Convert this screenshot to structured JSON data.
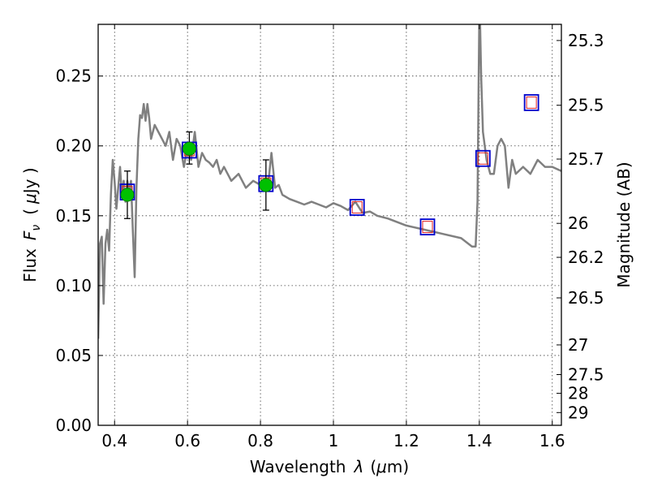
{
  "chart_data": {
    "type": "line",
    "xlabel_text": "Wavelength",
    "xlabel_symbol": "λ",
    "xlabel_unit_open": "(",
    "xlabel_unit_mu": "μ",
    "xlabel_unit_rest": "m)",
    "ylabel_text": "Flux",
    "ylabel_symbol": "F",
    "ylabel_subscript": "ν",
    "ylabel_unit_open": "(",
    "ylabel_unit_mu": "μ",
    "ylabel_unit_rest": "Jy )",
    "y2label": "Magnitude (AB)",
    "xlim": [
      0.355,
      1.625
    ],
    "ylim": [
      0.0,
      0.287
    ],
    "grid": true,
    "x_ticks": [
      {
        "value": 0.4,
        "label": "0.4"
      },
      {
        "value": 0.6,
        "label": "0.6"
      },
      {
        "value": 0.8,
        "label": "0.8"
      },
      {
        "value": 1.0,
        "label": "1"
      },
      {
        "value": 1.2,
        "label": "1.2"
      },
      {
        "value": 1.4,
        "label": "1.4"
      },
      {
        "value": 1.6,
        "label": "1.6"
      }
    ],
    "y_ticks": [
      {
        "value": 0.0,
        "label": "0.00"
      },
      {
        "value": 0.05,
        "label": "0.05"
      },
      {
        "value": 0.1,
        "label": "0.10"
      },
      {
        "value": 0.15,
        "label": "0.15"
      },
      {
        "value": 0.2,
        "label": "0.20"
      },
      {
        "value": 0.25,
        "label": "0.25"
      }
    ],
    "y2_ticks": [
      {
        "value": 25.3,
        "label": "25.3"
      },
      {
        "value": 25.5,
        "label": "25.5"
      },
      {
        "value": 25.7,
        "label": "25.7"
      },
      {
        "value": 26.0,
        "label": "26"
      },
      {
        "value": 26.2,
        "label": "26.2"
      },
      {
        "value": 26.5,
        "label": "26.5"
      },
      {
        "value": 27.0,
        "label": "27"
      },
      {
        "value": 27.5,
        "label": "27.5"
      },
      {
        "value": 28.0,
        "label": "28"
      },
      {
        "value": 29.0,
        "label": "29"
      }
    ],
    "sed_model": {
      "color": "#808080",
      "x": [
        0.355,
        0.36,
        0.365,
        0.37,
        0.375,
        0.38,
        0.385,
        0.39,
        0.395,
        0.4,
        0.405,
        0.41,
        0.415,
        0.42,
        0.425,
        0.43,
        0.435,
        0.44,
        0.445,
        0.45,
        0.455,
        0.46,
        0.465,
        0.47,
        0.475,
        0.48,
        0.485,
        0.49,
        0.495,
        0.5,
        0.51,
        0.52,
        0.53,
        0.54,
        0.55,
        0.56,
        0.57,
        0.58,
        0.59,
        0.6,
        0.61,
        0.62,
        0.63,
        0.64,
        0.65,
        0.66,
        0.67,
        0.68,
        0.69,
        0.7,
        0.72,
        0.74,
        0.76,
        0.78,
        0.8,
        0.82,
        0.83,
        0.84,
        0.85,
        0.86,
        0.88,
        0.9,
        0.92,
        0.94,
        0.96,
        0.98,
        1.0,
        1.02,
        1.04,
        1.06,
        1.08,
        1.1,
        1.12,
        1.15,
        1.2,
        1.25,
        1.3,
        1.35,
        1.38,
        1.39,
        1.395,
        1.398,
        1.4,
        1.402,
        1.405,
        1.41,
        1.42,
        1.43,
        1.44,
        1.45,
        1.46,
        1.47,
        1.48,
        1.49,
        1.5,
        1.52,
        1.54,
        1.56,
        1.58,
        1.6,
        1.625
      ],
      "y": [
        0.062,
        0.13,
        0.135,
        0.087,
        0.13,
        0.14,
        0.125,
        0.165,
        0.19,
        0.175,
        0.155,
        0.17,
        0.185,
        0.165,
        0.175,
        0.16,
        0.175,
        0.168,
        0.175,
        0.14,
        0.106,
        0.17,
        0.205,
        0.222,
        0.22,
        0.23,
        0.218,
        0.23,
        0.22,
        0.205,
        0.215,
        0.21,
        0.205,
        0.2,
        0.21,
        0.19,
        0.205,
        0.2,
        0.185,
        0.2,
        0.19,
        0.21,
        0.185,
        0.195,
        0.19,
        0.188,
        0.185,
        0.19,
        0.18,
        0.185,
        0.175,
        0.18,
        0.17,
        0.175,
        0.172,
        0.17,
        0.195,
        0.17,
        0.172,
        0.165,
        0.162,
        0.16,
        0.158,
        0.16,
        0.158,
        0.156,
        0.159,
        0.157,
        0.154,
        0.16,
        0.152,
        0.153,
        0.15,
        0.148,
        0.143,
        0.14,
        0.137,
        0.134,
        0.128,
        0.128,
        0.16,
        0.24,
        0.29,
        0.29,
        0.25,
        0.21,
        0.19,
        0.18,
        0.18,
        0.2,
        0.205,
        0.2,
        0.17,
        0.19,
        0.18,
        0.185,
        0.18,
        0.19,
        0.185,
        0.185,
        0.182
      ]
    },
    "observed": {
      "color": "#00c000",
      "points": [
        {
          "x": 0.435,
          "y": 0.165,
          "yerr_low": 0.148,
          "yerr_high": 0.182
        },
        {
          "x": 0.605,
          "y": 0.198,
          "yerr_low": 0.187,
          "yerr_high": 0.21
        },
        {
          "x": 0.815,
          "y": 0.172,
          "yerr_low": 0.154,
          "yerr_high": 0.19
        }
      ]
    },
    "model_bandpass": {
      "outer_color": "#0000cc",
      "inner_color": "#e02020",
      "points": [
        {
          "x": 0.435,
          "y": 0.167
        },
        {
          "x": 0.605,
          "y": 0.197
        },
        {
          "x": 0.815,
          "y": 0.173
        },
        {
          "x": 1.065,
          "y": 0.156
        },
        {
          "x": 1.258,
          "y": 0.142
        },
        {
          "x": 1.41,
          "y": 0.191
        },
        {
          "x": 1.543,
          "y": 0.231
        }
      ]
    }
  }
}
